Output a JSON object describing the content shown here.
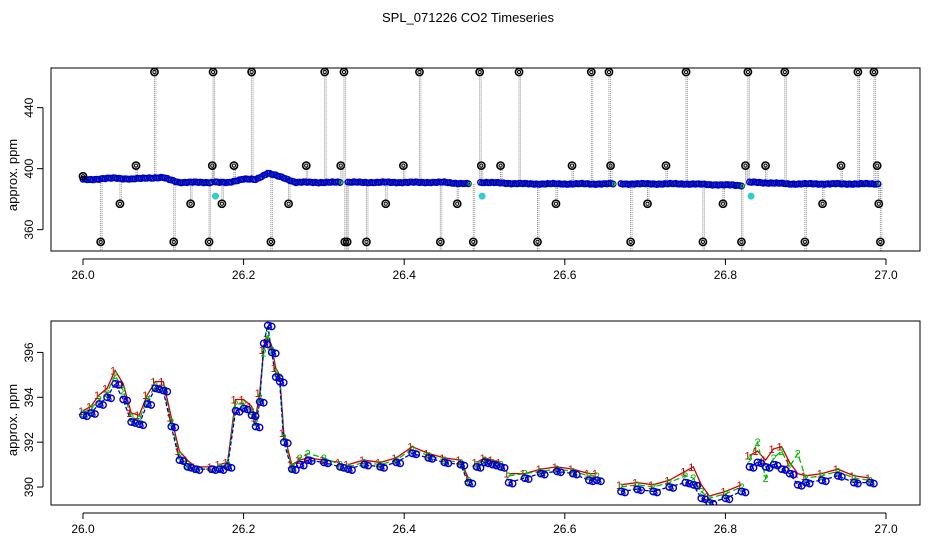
{
  "title": "SPL_071226  CO2 Timeseries",
  "colors": {
    "frame": "#000000",
    "red": "#cc0000",
    "green": "#00bb00",
    "blue": "#0000cc",
    "cyan": "#33cccc",
    "gray": "#888888",
    "black": "#000000"
  },
  "chart_data": [
    {
      "type": "scatter",
      "title": "",
      "xlabel": "",
      "ylabel": "approx. ppm",
      "xlim": [
        26.0,
        27.0
      ],
      "ylim": [
        346,
        466
      ],
      "x_ticks": [
        "26.0",
        "26.2",
        "26.4",
        "26.6",
        "26.8",
        "27.0"
      ],
      "y_ticks": [
        "360",
        "400",
        "440"
      ],
      "series": [
        {
          "name": "filled baseline (blue/green points)",
          "segments": [
            {
              "x": [
                26.0,
                26.02,
                26.04,
                26.06,
                26.08,
                26.1,
                26.12,
                26.16
              ],
              "y": [
                393,
                393,
                394,
                393,
                394,
                394,
                391,
                391
              ]
            },
            {
              "x": [
                26.165,
                26.18,
                26.2,
                26.215,
                26.23,
                26.25,
                26.265,
                26.32
              ],
              "y": [
                391,
                391,
                393,
                393,
                397,
                394,
                391,
                391
              ]
            },
            {
              "x": [
                26.33,
                26.4,
                26.45,
                26.48
              ],
              "y": [
                391,
                391,
                391,
                390
              ]
            },
            {
              "x": [
                26.495,
                26.5,
                26.55,
                26.6,
                26.66
              ],
              "y": [
                391,
                391,
                390,
                390,
                390
              ]
            },
            {
              "x": [
                26.67,
                26.75,
                26.82
              ],
              "y": [
                390,
                390,
                389
              ]
            },
            {
              "x": [
                26.83,
                26.84,
                26.88,
                26.99
              ],
              "y": [
                391,
                391,
                390,
                390
              ]
            }
          ]
        },
        {
          "name": "cyan markers",
          "x": [
            26.165,
            26.497,
            26.832
          ],
          "y": [
            382,
            382,
            382
          ]
        },
        {
          "name": "outliers (black circles)",
          "x": [
            26.0,
            26.022,
            26.046,
            26.066,
            26.089,
            26.113,
            26.134,
            26.157,
            26.161,
            26.162,
            26.173,
            26.188,
            26.21,
            26.234,
            26.256,
            26.278,
            26.301,
            26.321,
            26.325,
            26.326,
            26.329,
            26.353,
            26.377,
            26.399,
            26.419,
            26.445,
            26.466,
            26.486,
            26.494,
            26.496,
            26.52,
            26.543,
            26.566,
            26.589,
            26.609,
            26.633,
            26.655,
            26.657,
            26.682,
            26.703,
            26.726,
            26.751,
            26.772,
            26.797,
            26.82,
            26.825,
            26.828,
            26.85,
            26.874,
            26.899,
            26.921,
            26.944,
            26.965,
            26.985,
            26.989,
            26.991,
            26.993
          ],
          "y": [
            395,
            352,
            377,
            402,
            466,
            352,
            377,
            352,
            402,
            466,
            377,
            402,
            466,
            352,
            377,
            402,
            466,
            402,
            466,
            352,
            352,
            352,
            377,
            402,
            466,
            352,
            377,
            352,
            466,
            402,
            402,
            466,
            352,
            377,
            402,
            466,
            466,
            402,
            352,
            377,
            402,
            466,
            352,
            377,
            352,
            402,
            466,
            402,
            466,
            352,
            377,
            402,
            466,
            466,
            402,
            377,
            352
          ]
        }
      ]
    },
    {
      "type": "line",
      "title": "",
      "xlabel": "",
      "ylabel": "approx. ppm",
      "xlim": [
        26.0,
        27.0
      ],
      "ylim": [
        389.2,
        397.4
      ],
      "x_ticks": [
        "26.0",
        "26.2",
        "26.4",
        "26.6",
        "26.8",
        "27.0"
      ],
      "y_ticks": [
        "390",
        "392",
        "394",
        "396"
      ],
      "series": [
        {
          "name": "channel 1 (red)",
          "marker": "1",
          "segments": [
            {
              "x": [
                26.0,
                26.01,
                26.02,
                26.03,
                26.04,
                26.05,
                26.06,
                26.07,
                26.08,
                26.09,
                26.1,
                26.11,
                26.12,
                26.13,
                26.14,
                26.16
              ],
              "y": [
                393.4,
                393.6,
                394.1,
                394.4,
                395.2,
                394.6,
                393.3,
                393.2,
                394.1,
                394.7,
                394.7,
                393.1,
                391.6,
                391.2,
                390.9,
                390.9
              ]
            },
            {
              "x": [
                26.17,
                26.18,
                26.19,
                26.2,
                26.21,
                26.215,
                26.22,
                26.225,
                26.23,
                26.235,
                26.24,
                26.245,
                26.25,
                26.26,
                26.27,
                26.28,
                26.3,
                26.32
              ],
              "y": [
                391.0,
                391.1,
                393.9,
                393.9,
                393.6,
                393.1,
                394.2,
                396.1,
                396.6,
                396.3,
                395.3,
                395.0,
                392.4,
                391.0,
                391.2,
                391.3,
                391.2,
                391.1
              ]
            },
            {
              "x": [
                26.33,
                26.35,
                26.37,
                26.39,
                26.41,
                26.43,
                26.45,
                26.47,
                26.48
              ],
              "y": [
                391.0,
                391.2,
                391.1,
                391.3,
                391.8,
                391.5,
                391.3,
                391.2,
                390.4
              ]
            },
            {
              "x": [
                26.49,
                26.5,
                26.51,
                26.52
              ],
              "y": [
                391.1,
                391.3,
                391.2,
                391.1
              ]
            },
            {
              "x": [
                26.53,
                26.55,
                26.57,
                26.59,
                26.61,
                26.63,
                26.64
              ],
              "y": [
                390.6,
                390.6,
                390.8,
                390.9,
                390.8,
                390.6,
                390.6
              ]
            },
            {
              "x": [
                26.67,
                26.69,
                26.71,
                26.73,
                26.75,
                26.76,
                26.77,
                26.78,
                26.8,
                26.82
              ],
              "y": [
                390.1,
                390.2,
                390.1,
                390.3,
                390.7,
                390.9,
                390.1,
                389.6,
                389.8,
                390.1
              ]
            },
            {
              "x": [
                26.83,
                26.84,
                26.85,
                26.86,
                26.87,
                26.88,
                26.89,
                26.9,
                26.92,
                26.94,
                26.96,
                26.98
              ],
              "y": [
                391.4,
                391.6,
                391.2,
                391.7,
                391.8,
                391.1,
                390.6,
                390.5,
                390.6,
                390.8,
                390.5,
                390.4
              ]
            }
          ]
        },
        {
          "name": "channel 2 (green)",
          "marker": "2",
          "segments": [
            {
              "x": [
                26.0,
                26.01,
                26.02,
                26.03,
                26.04,
                26.05,
                26.06,
                26.07,
                26.08,
                26.09,
                26.1,
                26.11,
                26.12,
                26.13,
                26.14,
                26.16
              ],
              "y": [
                393.3,
                393.5,
                393.9,
                394.2,
                395.0,
                394.3,
                393.1,
                393.0,
                393.9,
                394.5,
                394.4,
                392.9,
                391.4,
                391.0,
                390.8,
                390.8
              ]
            },
            {
              "x": [
                26.17,
                26.18,
                26.19,
                26.2,
                26.21,
                26.215,
                26.22,
                26.225,
                26.23,
                26.235,
                26.24,
                26.245,
                26.25,
                26.26,
                26.27,
                26.28,
                26.3,
                26.32
              ],
              "y": [
                390.9,
                391.0,
                393.7,
                393.7,
                393.4,
                392.9,
                394.0,
                396.0,
                396.8,
                396.1,
                395.1,
                394.9,
                392.2,
                390.9,
                391.3,
                391.5,
                391.3,
                391.0
              ]
            },
            {
              "x": [
                26.33,
                26.35,
                26.37,
                26.39,
                26.41,
                26.43,
                26.45,
                26.47,
                26.48
              ],
              "y": [
                390.9,
                391.1,
                391.0,
                391.2,
                391.7,
                391.4,
                391.2,
                391.1,
                390.3
              ]
            },
            {
              "x": [
                26.49,
                26.5,
                26.51,
                26.52
              ],
              "y": [
                391.0,
                391.2,
                391.1,
                391.0
              ]
            },
            {
              "x": [
                26.53,
                26.55,
                26.57,
                26.59,
                26.61,
                26.63,
                26.64
              ],
              "y": [
                390.5,
                390.6,
                390.7,
                390.8,
                390.7,
                390.5,
                390.5
              ]
            },
            {
              "x": [
                26.67,
                26.69,
                26.71,
                26.73,
                26.75,
                26.76,
                26.77,
                26.78,
                26.8,
                26.82
              ],
              "y": [
                390.0,
                390.1,
                390.0,
                390.2,
                390.5,
                390.4,
                389.8,
                389.5,
                389.7,
                390.0
              ]
            },
            {
              "x": [
                26.83,
                26.84,
                26.85,
                26.86,
                26.87,
                26.88,
                26.89,
                26.9,
                26.92,
                26.94,
                26.96,
                26.98
              ],
              "y": [
                391.2,
                392.0,
                390.4,
                391.3,
                391.6,
                390.9,
                391.5,
                390.4,
                390.5,
                390.7,
                390.4,
                390.3
              ]
            }
          ]
        },
        {
          "name": "channel 3 (blue)",
          "marker": "3",
          "segments": [
            {
              "x": [
                26.0,
                26.01,
                26.02,
                26.03,
                26.04,
                26.05,
                26.06,
                26.07,
                26.08,
                26.09,
                26.1,
                26.11,
                26.12,
                26.13,
                26.14,
                26.16
              ],
              "y": [
                393.2,
                393.3,
                393.7,
                394.0,
                394.6,
                393.9,
                392.9,
                392.8,
                393.7,
                394.4,
                394.3,
                392.7,
                391.2,
                390.9,
                390.8,
                390.8
              ]
            },
            {
              "x": [
                26.17,
                26.18,
                26.19,
                26.2,
                26.21,
                26.215,
                26.22,
                26.225,
                26.23,
                26.235,
                26.24,
                26.245,
                26.25,
                26.26,
                26.27,
                26.28,
                26.3,
                26.32
              ],
              "y": [
                390.8,
                390.9,
                393.4,
                393.5,
                393.2,
                392.7,
                393.8,
                396.4,
                397.2,
                396.0,
                394.9,
                394.7,
                392.0,
                390.8,
                391.0,
                391.2,
                391.1,
                390.9
              ]
            },
            {
              "x": [
                26.33,
                26.35,
                26.37,
                26.39,
                26.41,
                26.43,
                26.45,
                26.47,
                26.48
              ],
              "y": [
                390.8,
                391.0,
                390.9,
                391.1,
                391.5,
                391.3,
                391.1,
                391.0,
                390.2
              ]
            },
            {
              "x": [
                26.49,
                26.5,
                26.51,
                26.52
              ],
              "y": [
                390.9,
                391.1,
                391.0,
                390.9
              ]
            },
            {
              "x": [
                26.53,
                26.55,
                26.57,
                26.59,
                26.61,
                26.63,
                26.64
              ],
              "y": [
                390.2,
                390.4,
                390.6,
                390.7,
                390.6,
                390.3,
                390.3
              ]
            },
            {
              "x": [
                26.67,
                26.69,
                26.71,
                26.73,
                26.75,
                26.76,
                26.77,
                26.78,
                26.8,
                26.82
              ],
              "y": [
                389.8,
                389.9,
                389.8,
                390.0,
                390.2,
                390.1,
                389.5,
                389.3,
                389.5,
                389.8
              ]
            },
            {
              "x": [
                26.83,
                26.84,
                26.85,
                26.86,
                26.87,
                26.88,
                26.89,
                26.9,
                26.92,
                26.94,
                26.96,
                26.98
              ],
              "y": [
                390.9,
                391.1,
                390.9,
                391.0,
                390.8,
                390.6,
                390.1,
                390.2,
                390.3,
                390.5,
                390.2,
                390.2
              ]
            }
          ]
        }
      ]
    }
  ]
}
